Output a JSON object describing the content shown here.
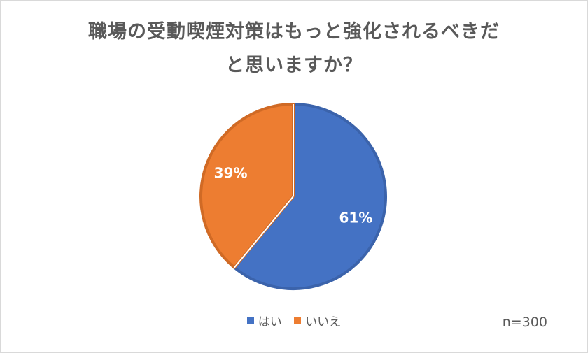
{
  "chart_data": {
    "type": "pie",
    "title_lines": [
      "職場の受動喫煙対策はもっと強化されるべきだ",
      "と思いますか？"
    ],
    "slices": [
      {
        "label": "はい",
        "value": 61,
        "data_label": "61%",
        "color": "#4472C4",
        "edge": "#3B63AB"
      },
      {
        "label": "いいえ",
        "value": 39,
        "data_label": "39%",
        "color": "#ED7D31",
        "edge": "#D06A25"
      }
    ],
    "legend_position": "bottom",
    "start_angle_deg": 0,
    "direction": "clockwise"
  },
  "note": "n=300"
}
